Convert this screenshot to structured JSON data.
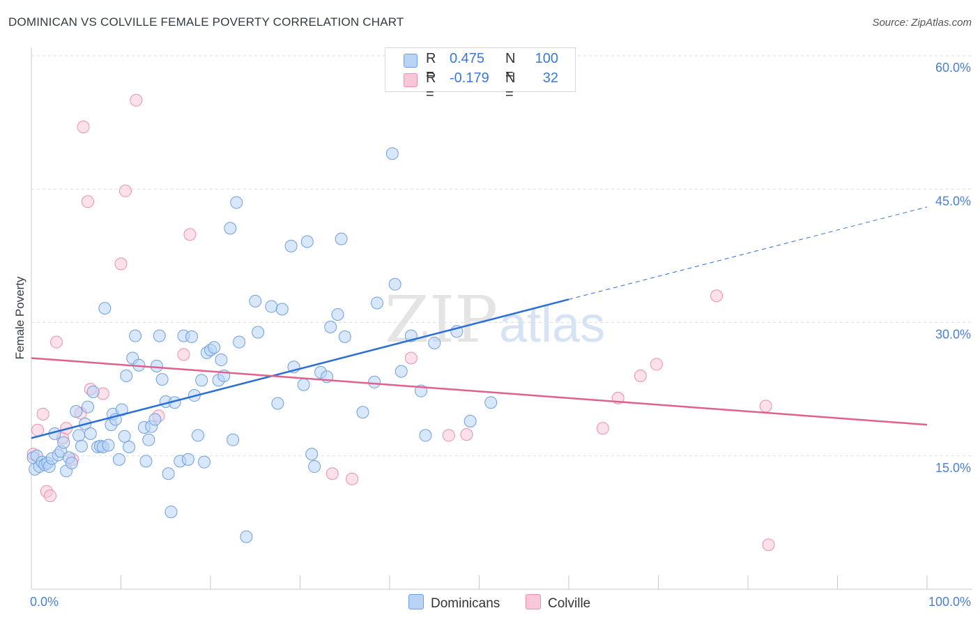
{
  "header": {
    "title": "DOMINICAN VS COLVILLE FEMALE POVERTY CORRELATION CHART",
    "source": "Source: ZipAtlas.com"
  },
  "watermark": {
    "text_a": "ZIP",
    "text_b": "atlas"
  },
  "legend_top": {
    "rows": [
      {
        "r_label": "R =",
        "r_value": "0.475",
        "n_label": "N =",
        "n_value": "100"
      },
      {
        "r_label": "R =",
        "r_value": "-0.179",
        "n_label": "N =",
        "n_value": "32"
      }
    ]
  },
  "legend_bottom": {
    "items": [
      "Dominicans",
      "Colville"
    ]
  },
  "colors": {
    "blue_fill": "#b8d3f5",
    "blue_stroke": "#6f9fe0",
    "blue_line": "#2b6fd6",
    "pink_fill": "#f9c8d8",
    "pink_stroke": "#ec8fb0",
    "pink_line": "#e0608e"
  },
  "chart_data": {
    "type": "scatter",
    "title": "DOMINICAN VS COLVILLE FEMALE POVERTY CORRELATION CHART",
    "xlabel": "",
    "ylabel": "Female Poverty",
    "xlim": [
      0,
      100
    ],
    "ylim": [
      0,
      60
    ],
    "x_tick_labels": [
      "0.0%",
      "100.0%"
    ],
    "y_ticks": [
      15,
      30,
      45,
      60
    ],
    "y_tick_labels": [
      "15.0%",
      "30.0%",
      "45.0%",
      "60.0%"
    ],
    "grid": true,
    "legend_position": "top-center",
    "series": [
      {
        "name": "Dominicans",
        "r": 0.475,
        "n": 100,
        "trend": {
          "x0": 0,
          "y0": 17,
          "x1": 60,
          "y1": 32.6,
          "dashed_to_x": 100,
          "dashed_to_y": 43
        },
        "points": [
          [
            0.2,
            14.8
          ],
          [
            0.4,
            13.5
          ],
          [
            0.6,
            15.0
          ],
          [
            0.9,
            13.8
          ],
          [
            1.2,
            14.3
          ],
          [
            1.5,
            14.0
          ],
          [
            1.8,
            14.2
          ],
          [
            2.0,
            13.8
          ],
          [
            2.3,
            14.7
          ],
          [
            2.6,
            17.5
          ],
          [
            3.0,
            15.1
          ],
          [
            3.3,
            15.5
          ],
          [
            3.6,
            16.5
          ],
          [
            3.9,
            13.3
          ],
          [
            4.2,
            14.8
          ],
          [
            4.5,
            14.2
          ],
          [
            5.0,
            20.0
          ],
          [
            5.3,
            17.3
          ],
          [
            5.6,
            16.1
          ],
          [
            6.0,
            18.6
          ],
          [
            6.3,
            20.5
          ],
          [
            6.6,
            17.5
          ],
          [
            6.9,
            22.2
          ],
          [
            7.4,
            16.0
          ],
          [
            7.7,
            16.1
          ],
          [
            8.0,
            16.0
          ],
          [
            8.2,
            31.6
          ],
          [
            8.6,
            16.2
          ],
          [
            8.9,
            18.5
          ],
          [
            9.1,
            19.7
          ],
          [
            9.4,
            19.1
          ],
          [
            9.8,
            14.6
          ],
          [
            10.1,
            20.2
          ],
          [
            10.4,
            17.2
          ],
          [
            10.6,
            24.0
          ],
          [
            10.9,
            16.0
          ],
          [
            11.3,
            26.0
          ],
          [
            11.6,
            28.5
          ],
          [
            12.0,
            25.2
          ],
          [
            12.6,
            18.2
          ],
          [
            12.8,
            14.4
          ],
          [
            13.1,
            16.8
          ],
          [
            13.4,
            18.3
          ],
          [
            13.8,
            19.1
          ],
          [
            14.0,
            25.1
          ],
          [
            14.3,
            28.5
          ],
          [
            14.6,
            23.6
          ],
          [
            15.0,
            21.1
          ],
          [
            15.3,
            13.0
          ],
          [
            15.6,
            8.7
          ],
          [
            16.0,
            21.0
          ],
          [
            16.6,
            14.4
          ],
          [
            17.0,
            28.5
          ],
          [
            17.5,
            14.6
          ],
          [
            17.9,
            28.4
          ],
          [
            18.2,
            21.8
          ],
          [
            18.6,
            17.3
          ],
          [
            19.0,
            23.5
          ],
          [
            19.3,
            14.3
          ],
          [
            19.6,
            26.6
          ],
          [
            20.0,
            26.9
          ],
          [
            20.4,
            27.2
          ],
          [
            20.9,
            23.5
          ],
          [
            21.2,
            25.8
          ],
          [
            21.5,
            24.0
          ],
          [
            22.2,
            40.6
          ],
          [
            22.5,
            16.8
          ],
          [
            22.9,
            43.5
          ],
          [
            23.2,
            27.8
          ],
          [
            24.0,
            5.9
          ],
          [
            25.0,
            32.4
          ],
          [
            25.3,
            28.9
          ],
          [
            26.8,
            31.8
          ],
          [
            27.5,
            20.9
          ],
          [
            28.0,
            31.5
          ],
          [
            29.0,
            38.6
          ],
          [
            29.3,
            25.0
          ],
          [
            30.4,
            23.0
          ],
          [
            30.8,
            39.1
          ],
          [
            31.3,
            15.2
          ],
          [
            31.6,
            13.8
          ],
          [
            32.3,
            24.4
          ],
          [
            33.0,
            23.9
          ],
          [
            33.4,
            29.5
          ],
          [
            34.2,
            30.9
          ],
          [
            34.6,
            39.4
          ],
          [
            35.0,
            28.4
          ],
          [
            37.0,
            19.9
          ],
          [
            38.3,
            23.3
          ],
          [
            38.6,
            32.2
          ],
          [
            40.3,
            49.0
          ],
          [
            40.6,
            34.3
          ],
          [
            41.3,
            24.5
          ],
          [
            42.4,
            28.5
          ],
          [
            43.5,
            22.3
          ],
          [
            44.0,
            17.3
          ],
          [
            45.0,
            27.7
          ],
          [
            47.5,
            29.0
          ],
          [
            49.0,
            18.9
          ],
          [
            51.3,
            21.0
          ]
        ]
      },
      {
        "name": "Colville",
        "r": -0.179,
        "n": 32,
        "trend": {
          "x0": 0,
          "y0": 26,
          "x1": 100,
          "y1": 18.5
        },
        "points": [
          [
            0.2,
            15.2
          ],
          [
            0.7,
            17.9
          ],
          [
            1.3,
            19.7
          ],
          [
            1.7,
            11.0
          ],
          [
            2.1,
            10.5
          ],
          [
            2.8,
            27.8
          ],
          [
            3.5,
            17.0
          ],
          [
            3.9,
            18.1
          ],
          [
            4.6,
            14.6
          ],
          [
            5.5,
            19.8
          ],
          [
            5.8,
            52.0
          ],
          [
            6.3,
            43.6
          ],
          [
            6.6,
            22.5
          ],
          [
            8.0,
            22.0
          ],
          [
            10.0,
            36.6
          ],
          [
            10.5,
            44.8
          ],
          [
            11.7,
            55.0
          ],
          [
            14.2,
            19.5
          ],
          [
            17.0,
            26.4
          ],
          [
            17.7,
            39.9
          ],
          [
            33.6,
            13.0
          ],
          [
            35.8,
            12.4
          ],
          [
            42.4,
            26.0
          ],
          [
            46.6,
            17.3
          ],
          [
            48.6,
            17.4
          ],
          [
            63.8,
            18.1
          ],
          [
            65.5,
            21.5
          ],
          [
            68.0,
            24.0
          ],
          [
            69.8,
            25.3
          ],
          [
            76.5,
            33.0
          ],
          [
            82.0,
            20.6
          ],
          [
            82.3,
            5.0
          ]
        ]
      }
    ]
  }
}
